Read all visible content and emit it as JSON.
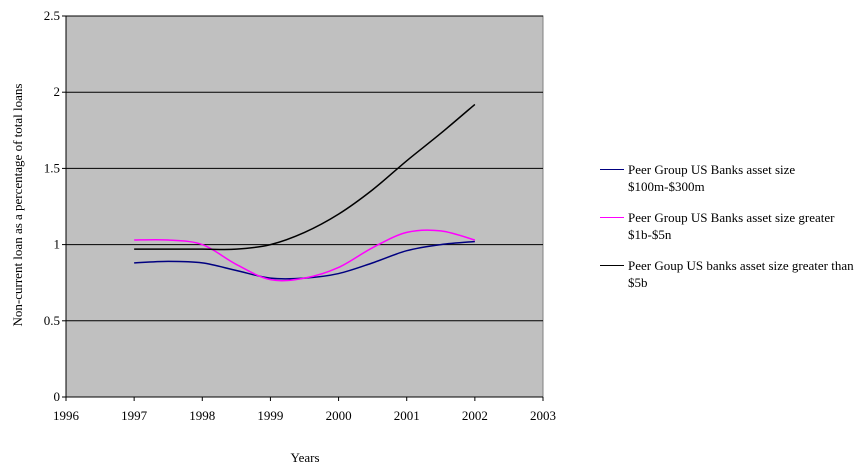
{
  "chart_data": {
    "type": "line",
    "x_label": "Years",
    "y_label": "Non-current loan as a percentage of total loans",
    "x": [
      1997,
      1997.5,
      1998,
      1998.5,
      1999,
      1999.5,
      2000,
      2000.5,
      2001,
      2001.5,
      2002
    ],
    "series": [
      {
        "name": "Peer Group US Banks asset size $100m-$300m",
        "color": "#000080",
        "values": [
          0.88,
          0.89,
          0.88,
          0.83,
          0.78,
          0.78,
          0.81,
          0.88,
          0.96,
          1.0,
          1.02
        ]
      },
      {
        "name": "Peer Group US Banks asset size greater $1b-$5n",
        "color": "#ff00ff",
        "values": [
          1.03,
          1.03,
          1.0,
          0.87,
          0.77,
          0.78,
          0.85,
          0.98,
          1.08,
          1.09,
          1.03
        ]
      },
      {
        "name": "Peer Goup US banks asset size greater than $5b",
        "color": "#000000",
        "values": [
          0.97,
          0.97,
          0.97,
          0.97,
          1.0,
          1.08,
          1.2,
          1.36,
          1.55,
          1.73,
          1.92
        ]
      }
    ],
    "xlim": [
      1996,
      2003
    ],
    "xticks": [
      1996,
      1997,
      1998,
      1999,
      2000,
      2001,
      2002,
      2003
    ],
    "ylim": [
      0,
      2.5
    ],
    "yticks": [
      0,
      0.5,
      1,
      1.5,
      2,
      2.5
    ],
    "grid": true,
    "plot_background": "#c0c0c0",
    "legend": "right"
  }
}
